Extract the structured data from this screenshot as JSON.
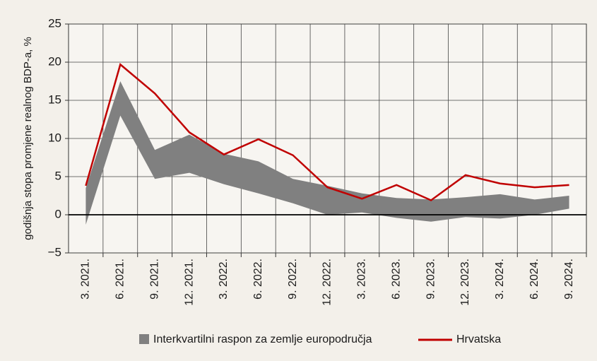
{
  "chart_data": {
    "type": "line",
    "y_label": "godišnja stopa promjene realnog BDP-a, %",
    "categories": [
      "3. 2021.",
      "6. 2021.",
      "9. 2021.",
      "12. 2021.",
      "3. 2022.",
      "6. 2022.",
      "9. 2022.",
      "12. 2022.",
      "3. 2023.",
      "6. 2023.",
      "9. 2023.",
      "12. 2023.",
      "3. 2024.",
      "6. 2024.",
      "9. 2024."
    ],
    "series": [
      {
        "name": "Interkvartilni raspon za zemlje europodručja",
        "color": "#808080",
        "lower": [
          -1.3,
          13,
          4.7,
          5.5,
          4,
          2.8,
          1.5,
          0,
          0.3,
          -0.4,
          -0.9,
          -0.3,
          -0.5,
          0,
          0.8
        ],
        "upper": [
          3.5,
          17.5,
          8.5,
          10.5,
          8,
          7,
          4.7,
          3.8,
          2.8,
          2.2,
          2,
          2.3,
          2.7,
          2,
          2.5
        ]
      },
      {
        "name": "Hrvatska",
        "color": "#c00000",
        "values": [
          3.8,
          19.7,
          15.9,
          10.8,
          7.9,
          9.9,
          7.8,
          3.6,
          2.1,
          3.9,
          1.9,
          5.2,
          4.1,
          3.6,
          3.9
        ]
      }
    ],
    "ylim": [
      -5,
      25
    ],
    "yticks": [
      {
        "value": -5,
        "label": "−5"
      },
      0,
      5,
      10,
      15,
      20,
      25
    ],
    "grid": true
  }
}
